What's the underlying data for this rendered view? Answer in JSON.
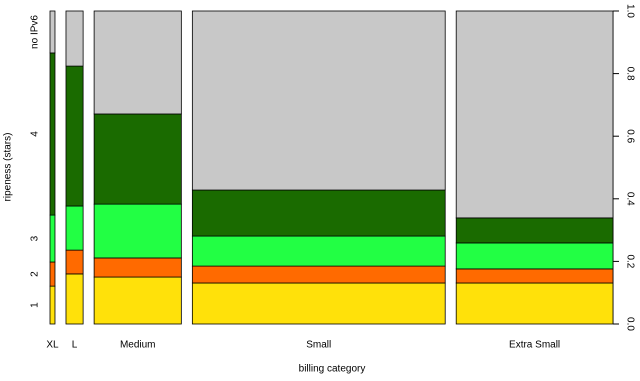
{
  "chart_data": {
    "type": "spineplot",
    "x_label": "billing category",
    "y_label": "ripeness (stars)",
    "categories": [
      "XL",
      "L",
      "Medium",
      "Small",
      "Extra Small"
    ],
    "widths": [
      0.0096,
      0.033,
      0.168,
      0.487,
      0.302
    ],
    "series": [
      {
        "name": "1",
        "color": "#ffe10a",
        "values": [
          0.121,
          0.16,
          0.15,
          0.131,
          0.131
        ]
      },
      {
        "name": "2",
        "color": "#ff6a00",
        "values": [
          0.077,
          0.076,
          0.061,
          0.054,
          0.045
        ]
      },
      {
        "name": "3",
        "color": "#22ff44",
        "values": [
          0.15,
          0.141,
          0.172,
          0.096,
          0.083
        ]
      },
      {
        "name": "4",
        "color": "#1a6b00",
        "values": [
          0.518,
          0.447,
          0.288,
          0.147,
          0.08
        ]
      },
      {
        "name": "no IPv6",
        "color": "#c8c8c8",
        "values": [
          0.134,
          0.176,
          0.329,
          0.572,
          0.661
        ]
      }
    ],
    "ylim": [
      0,
      1
    ],
    "yticks": [
      {
        "value": 0,
        "label": "0.0"
      },
      0.2,
      0.4,
      0.6,
      0.8,
      {
        "value": 1,
        "label": "1.0"
      }
    ]
  }
}
